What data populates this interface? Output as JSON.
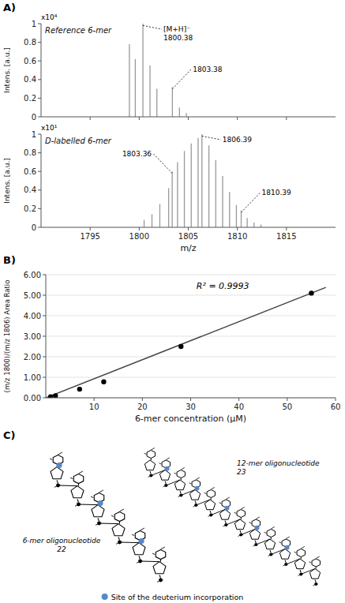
{
  "chart_data": [
    {
      "type": "stem",
      "title": "A)",
      "subtitle": "Reference 6-mer",
      "ylabel": "Intens. [a.u.]",
      "color": "#999999",
      "x": [
        1799.0,
        1799.6,
        1800.38,
        1801.1,
        1801.8,
        1803.38,
        1804.1,
        1804.8
      ],
      "values": [
        0.78,
        0.62,
        1.0,
        0.55,
        0.3,
        0.32,
        0.1,
        0.04
      ],
      "xlim": [
        1790,
        1820
      ],
      "xticks": [
        1795,
        1800,
        1805,
        1810,
        1815
      ],
      "ylim": [
        0,
        1
      ],
      "yticks": [
        0,
        0.2,
        0.4,
        0.6,
        0.8,
        1
      ],
      "tick_labels": "y",
      "annotations": [
        {
          "text": "x10⁴"
        },
        {
          "text": "[M+H]⁻\n1800.38",
          "x": 1800.38,
          "y": 0.98
        },
        {
          "text": "1803.38",
          "x": 1803.38,
          "y": 0.3
        }
      ]
    },
    {
      "type": "stem",
      "subtitle": "D-labelled 6-mer",
      "xlabel": "m/z",
      "ylabel": "Intens. [a.u.]",
      "color": "#999999",
      "x": [
        1800.5,
        1801.3,
        1802.1,
        1803.0,
        1803.36,
        1803.9,
        1804.6,
        1805.3,
        1806.0,
        1806.39,
        1807.1,
        1807.8,
        1808.5,
        1809.2,
        1809.9,
        1810.39,
        1811.0,
        1811.7,
        1812.4
      ],
      "values": [
        0.08,
        0.14,
        0.25,
        0.42,
        0.6,
        0.7,
        0.82,
        0.9,
        0.96,
        1.0,
        0.88,
        0.72,
        0.55,
        0.38,
        0.24,
        0.18,
        0.1,
        0.05,
        0.03
      ],
      "xlim": [
        1790,
        1820
      ],
      "xticks": [
        1795,
        1800,
        1805,
        1810,
        1815
      ],
      "ylim": [
        0,
        1
      ],
      "yticks": [
        0,
        0.2,
        0.4,
        0.6,
        0.8,
        1
      ],
      "annotations": [
        {
          "text": "x10¹"
        },
        {
          "text": "1806.39",
          "x": 1806.39,
          "y": 0.98
        },
        {
          "text": "1803.36",
          "x": 1803.36,
          "y": 0.58
        },
        {
          "text": "1810.39",
          "x": 1810.39,
          "y": 0.16
        }
      ]
    },
    {
      "type": "scatter",
      "title": "B)",
      "xlabel": "6-mer concentration (μM)",
      "ylabel": "(m/z 1800)/(m/z 1806) Area Ratio",
      "xlim": [
        0,
        60
      ],
      "xticks": [
        10,
        20,
        30,
        40,
        50,
        60
      ],
      "ylim": [
        0,
        6
      ],
      "yticks": [
        {
          "value": 0,
          "label": "0.00"
        },
        {
          "value": 1,
          "label": "1.00"
        },
        {
          "value": 2,
          "label": "2.00"
        },
        {
          "value": 3,
          "label": "3.00"
        },
        {
          "value": 4,
          "label": "4.00"
        },
        {
          "value": 5,
          "label": "5.00"
        },
        {
          "value": 6,
          "label": "6.00"
        }
      ],
      "grid": true,
      "annotations": [
        {
          "text": "R² = 0.9993"
        }
      ],
      "series": [
        {
          "type": "line",
          "color": "#444444",
          "x": [
            0,
            58
          ],
          "values": [
            0.0,
            5.38
          ]
        },
        {
          "type": "scatter",
          "color": "#000000",
          "marker": "circle",
          "x": [
            1,
            2,
            7,
            12,
            28,
            55
          ],
          "values": [
            0.05,
            0.1,
            0.42,
            0.78,
            2.5,
            5.1
          ]
        }
      ]
    },
    {
      "type": "diagram",
      "title": "C)",
      "annotations": [
        {
          "text": "6-mer oligonucleotide\n22"
        },
        {
          "text": "12-mer oligonucleotide\n23"
        }
      ],
      "legend": "bottom",
      "series": [
        {
          "name": "Site of the deuterium incorporation",
          "color": "#5588cc"
        }
      ]
    }
  ]
}
